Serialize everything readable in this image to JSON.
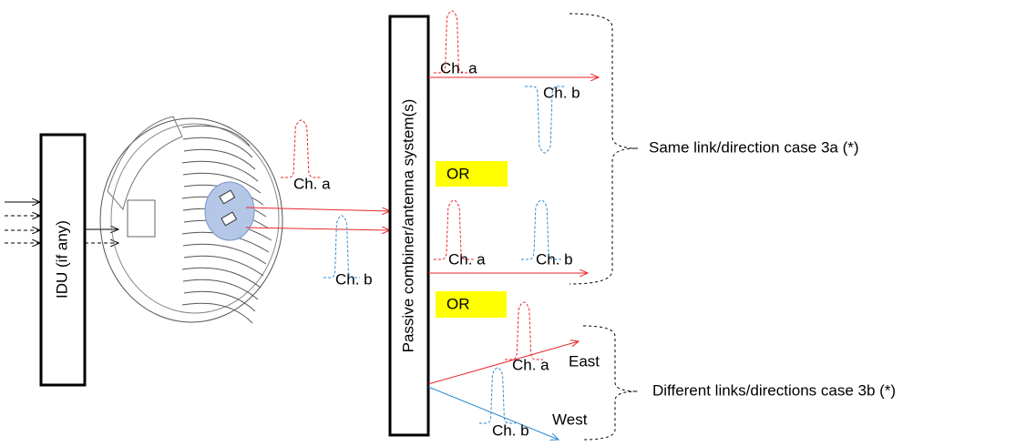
{
  "idu": {
    "label": "IDU (if any)"
  },
  "combiner": {
    "label": "Passive combiner/antenna system(s)"
  },
  "odu_outputs": {
    "channels": [
      "Ch. a",
      "Ch. b"
    ]
  },
  "case_3a": {
    "label": "Same link/direction case 3a (*)",
    "option1": {
      "channels": [
        "Ch. a",
        "Ch. b"
      ]
    },
    "separator": "OR",
    "option2": {
      "channels": [
        "Ch. a",
        "Ch. b"
      ]
    }
  },
  "separator": "OR",
  "case_3b": {
    "label": "Different links/directions case 3b (*)",
    "channels": [
      "Ch. a",
      "Ch. b"
    ],
    "directions": [
      "East",
      "West"
    ]
  }
}
